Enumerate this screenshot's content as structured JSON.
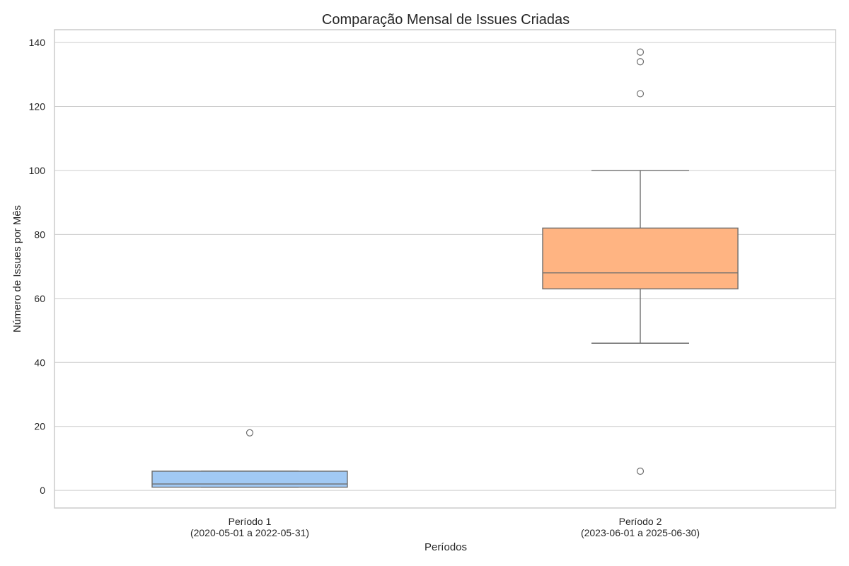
{
  "chart_data": {
    "type": "box",
    "title": "Comparação Mensal de Issues Criadas",
    "xlabel": "Períodos",
    "ylabel": "Número de Issues por Mês",
    "ylim": [
      -5.5,
      144
    ],
    "yticks": [
      0,
      20,
      40,
      60,
      80,
      100,
      120,
      140
    ],
    "grid": true,
    "categories": [
      {
        "line1": "Período 1",
        "line2": "(2020-05-01 a 2022-05-31)"
      },
      {
        "line1": "Período 2",
        "line2": "(2023-06-01 a 2025-06-30)"
      }
    ],
    "series": [
      {
        "whisker_low": 1,
        "q1": 1,
        "median": 2,
        "q3": 6,
        "whisker_high": 6,
        "outliers": [
          18
        ],
        "color": "#a1c9f4"
      },
      {
        "whisker_low": 46,
        "q1": 63,
        "median": 68,
        "q3": 82,
        "whisker_high": 100,
        "outliers": [
          137,
          134,
          124,
          6
        ],
        "color": "#ffb482"
      }
    ]
  }
}
